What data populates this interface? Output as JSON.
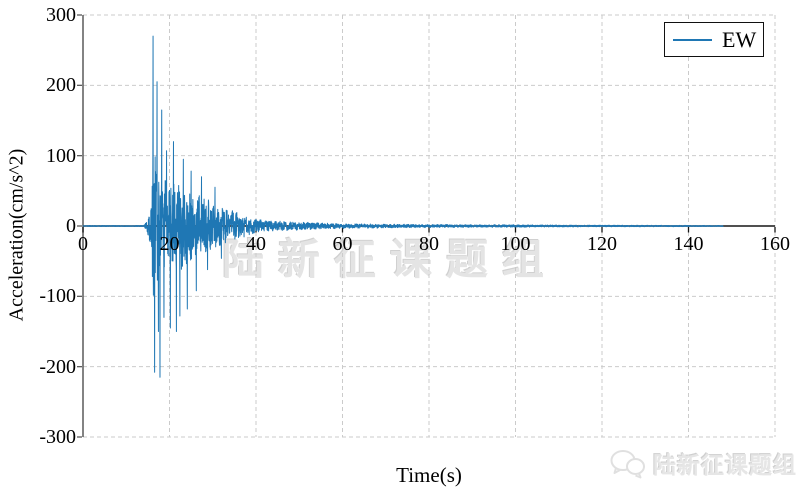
{
  "watermarks": {
    "center": "陆新征课题组",
    "footer": "陆新征课题组"
  },
  "chart_data": {
    "type": "line",
    "title": "",
    "xlabel": "Time(s)",
    "ylabel": "Acceleration(cm/s^2)",
    "xlim": [
      0,
      160
    ],
    "ylim": [
      -300,
      300
    ],
    "x_ticks": [
      0,
      20,
      40,
      60,
      80,
      100,
      120,
      140,
      160
    ],
    "y_ticks": [
      300,
      200,
      100,
      0,
      -100,
      -200,
      -300
    ],
    "grid": "dashed light-gray, horizontal every 100 and vertical every 20; x-axis drawn through y=0",
    "legend": {
      "position": "top-right",
      "entries": [
        {
          "label": "EW",
          "color": "#1f77b4"
        }
      ]
    },
    "series": [
      {
        "name": "EW",
        "color": "#1f77b4",
        "description": "Earthquake ground-motion acceleration time history (EW component). Quiet until ~14.5 s, strong burst 16-30 s, decays to near zero by 60 s, trace ends near 148 s.",
        "sample_interval_s": 0.04,
        "duration_s": 148,
        "peak": {
          "max_value": 270,
          "t_at_max": 16.2,
          "min_value": -215,
          "t_at_min": 17.8
        },
        "amplitude_envelope": [
          [
            0,
            0.8
          ],
          [
            14,
            0.8
          ],
          [
            14.8,
            8
          ],
          [
            15.4,
            30
          ],
          [
            15.9,
            50
          ],
          [
            16.2,
            120
          ],
          [
            17,
            95
          ],
          [
            18,
            85
          ],
          [
            19,
            70
          ],
          [
            20,
            62
          ],
          [
            21,
            72
          ],
          [
            23,
            68
          ],
          [
            25,
            55
          ],
          [
            27,
            45
          ],
          [
            29,
            38
          ],
          [
            31,
            30
          ],
          [
            33,
            26
          ],
          [
            35,
            22
          ],
          [
            38,
            14
          ],
          [
            40,
            10
          ],
          [
            43,
            8
          ],
          [
            46,
            7
          ],
          [
            50,
            6
          ],
          [
            55,
            4.5
          ],
          [
            60,
            3.5
          ],
          [
            70,
            2.8
          ],
          [
            80,
            2.3
          ],
          [
            90,
            2
          ],
          [
            100,
            1.8
          ],
          [
            110,
            1.5
          ],
          [
            120,
            1.2
          ],
          [
            135,
            1
          ],
          [
            148,
            0.8
          ]
        ],
        "notable_spikes": [
          [
            16.2,
            270
          ],
          [
            16.55,
            -208
          ],
          [
            17.1,
            205
          ],
          [
            17.45,
            -150
          ],
          [
            17.8,
            -215
          ],
          [
            18.2,
            165
          ],
          [
            18.7,
            -130
          ],
          [
            19.3,
            107
          ],
          [
            20.2,
            -145
          ],
          [
            20.9,
            120
          ],
          [
            21.6,
            -150
          ],
          [
            22.4,
            -128
          ],
          [
            23.2,
            95
          ],
          [
            24.1,
            -118
          ],
          [
            25.0,
            78
          ],
          [
            26.2,
            -92
          ],
          [
            27.4,
            70
          ],
          [
            28.8,
            -62
          ],
          [
            30.5,
            55
          ],
          [
            32.0,
            -46
          ]
        ]
      }
    ]
  },
  "style": {
    "line_color": "#1f77b4",
    "grid_color": "#cbcbcb",
    "spine_color": "#5a5a5a",
    "axis_color": "#161616",
    "text_color": "#000000",
    "watermark_color": "#e4e4e4"
  }
}
